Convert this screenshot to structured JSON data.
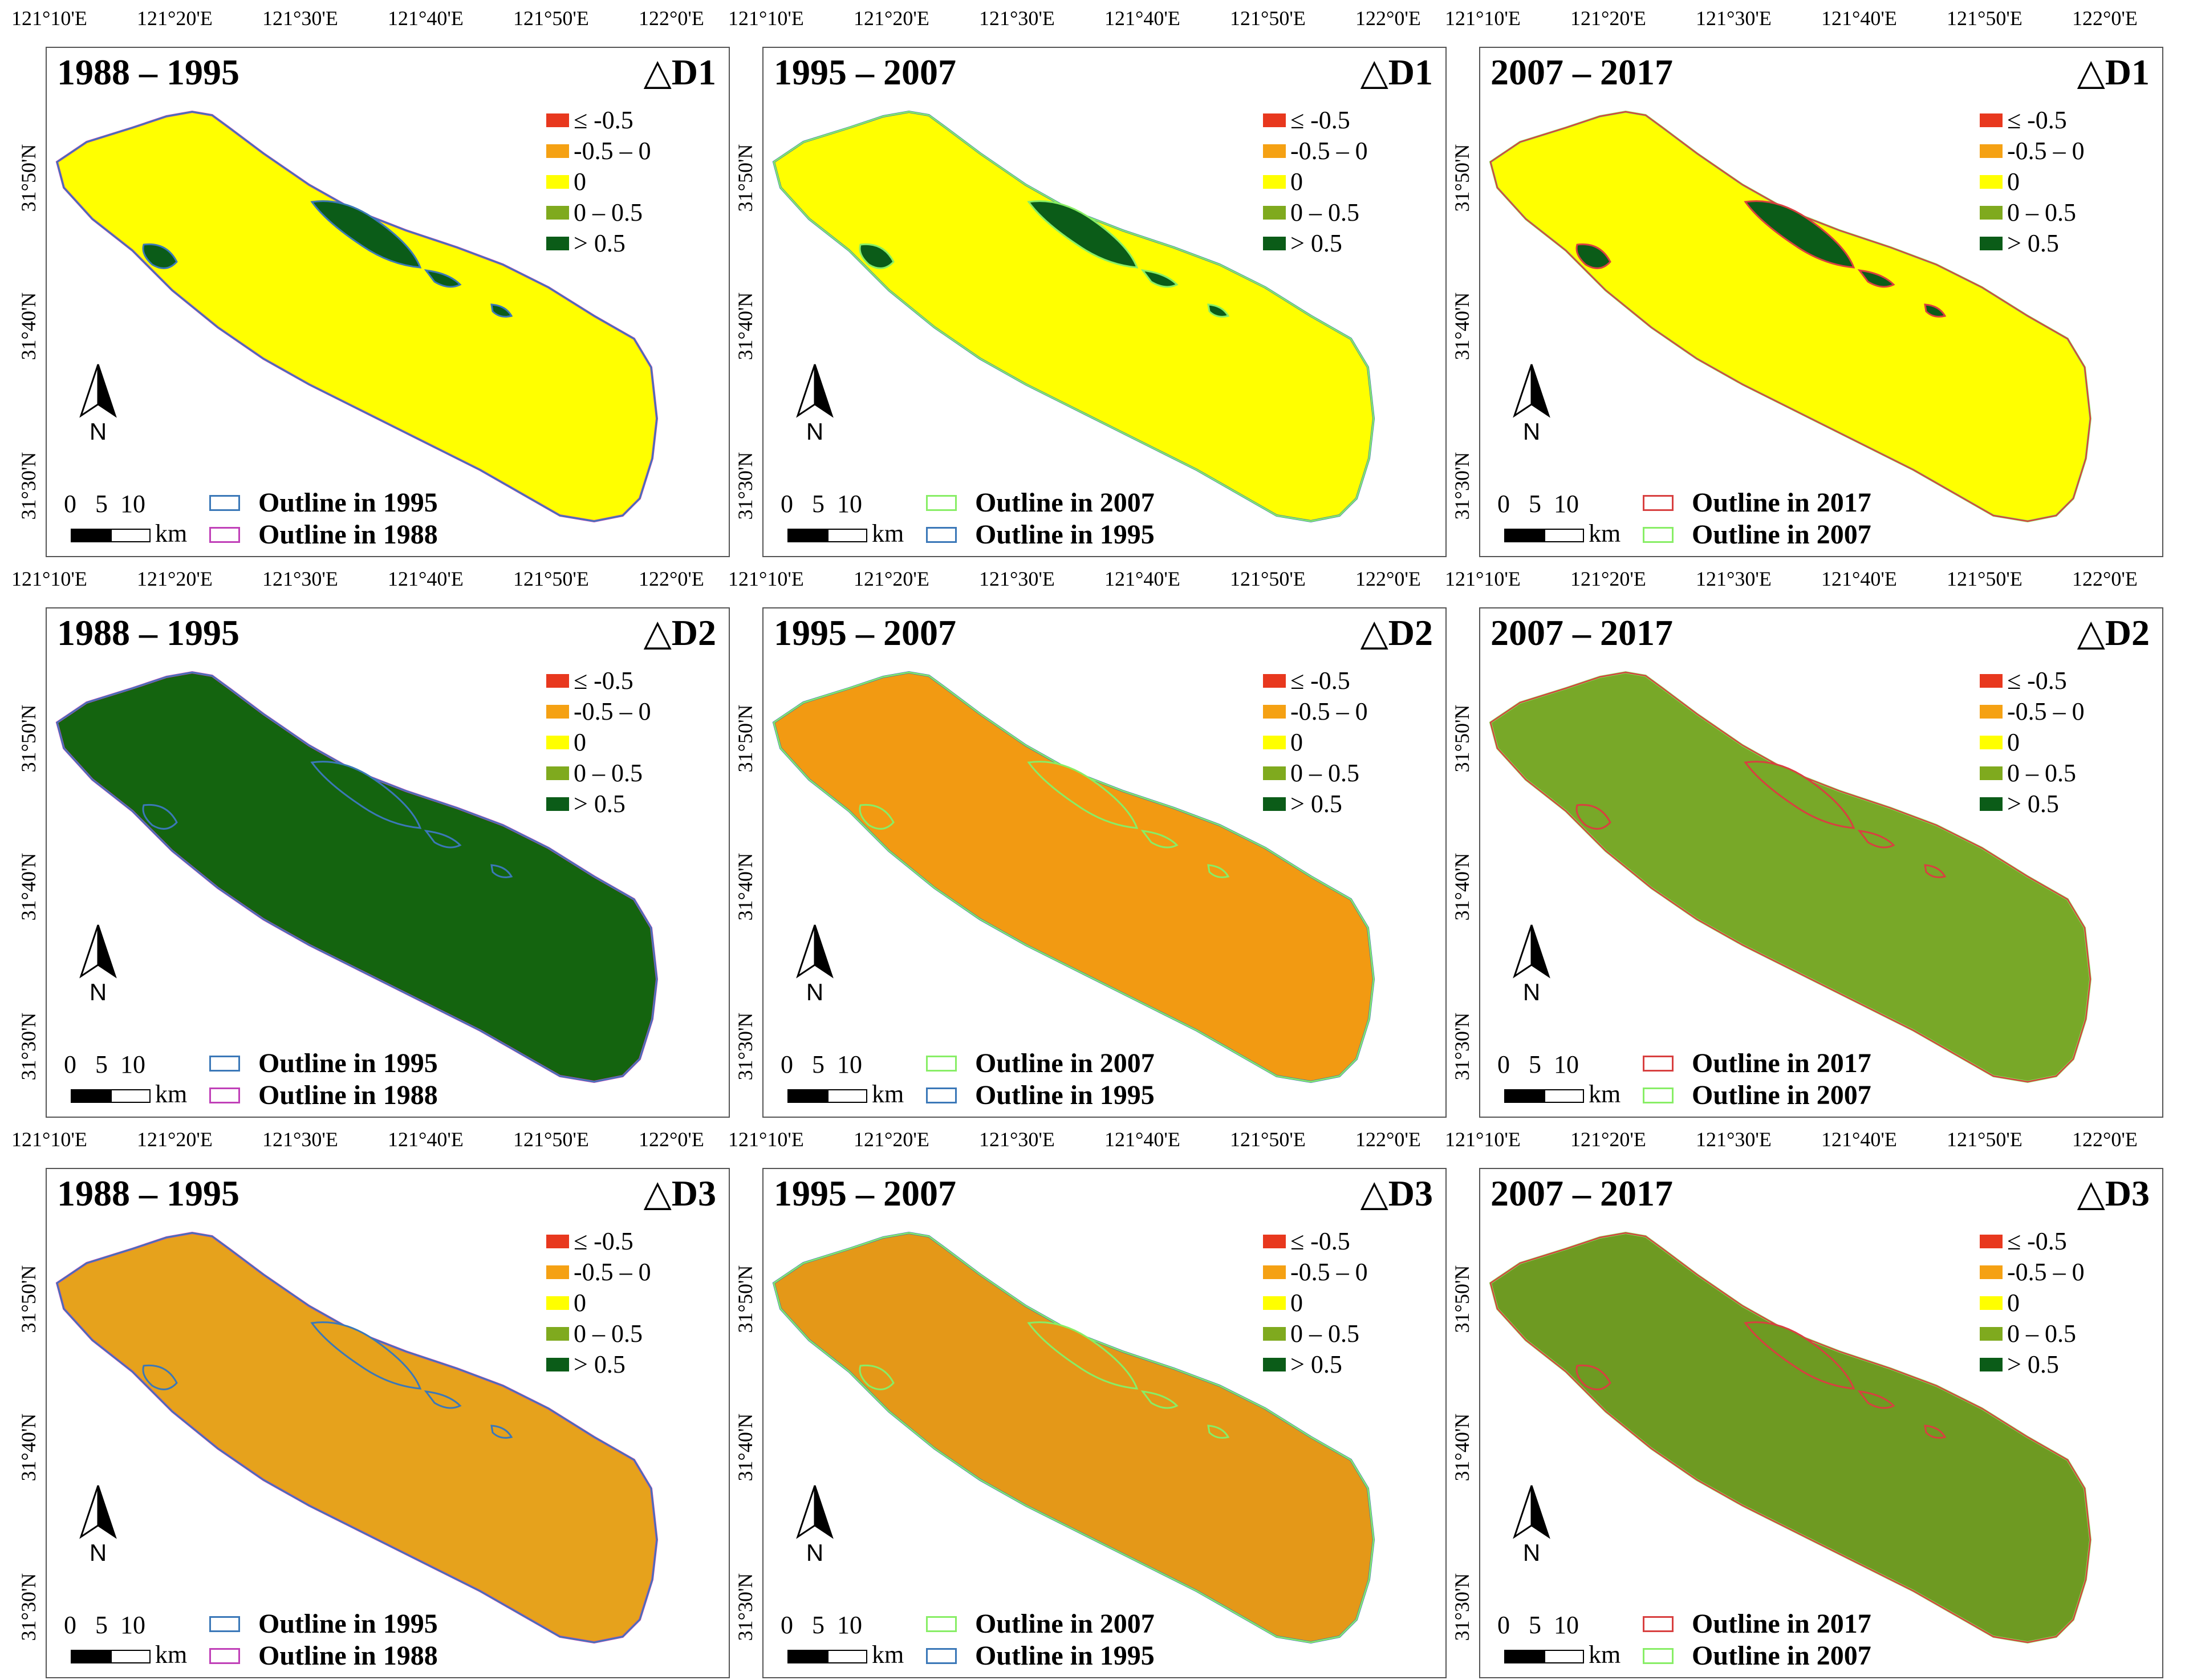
{
  "lon_labels": [
    "121°10'E",
    "121°20'E",
    "121°30'E",
    "121°40'E",
    "121°50'E",
    "122°0'E"
  ],
  "lat_labels": [
    "31°50'N",
    "31°40'N",
    "31°30'N"
  ],
  "legend_items": [
    {
      "label": "≤ -0.5",
      "color": "#e8381e"
    },
    {
      "label": "-0.5 – 0",
      "color": "#f5a113"
    },
    {
      "label": "0",
      "color": "#ffff00"
    },
    {
      "label": "0 – 0.5",
      "color": "#7faa1e"
    },
    {
      "label": "> 0.5",
      "color": "#0b5c18"
    }
  ],
  "north_label": "N",
  "scale": {
    "ticks": "0   5  10",
    "unit": "km"
  },
  "rows": [
    {
      "delta": "△D1"
    },
    {
      "delta": "△D2"
    },
    {
      "delta": "△D3"
    }
  ],
  "columns": [
    {
      "period": "1988 – 1995",
      "outlines": [
        {
          "label": "Outline in 1995",
          "color": "#3b78b8"
        },
        {
          "label": "Outline in 1988",
          "color": "#c040b8"
        }
      ]
    },
    {
      "period": "1995 – 2007",
      "outlines": [
        {
          "label": "Outline in 2007",
          "color": "#88ee66"
        },
        {
          "label": "Outline in 1995",
          "color": "#3b78b8"
        }
      ]
    },
    {
      "period": "2007 – 2017",
      "outlines": [
        {
          "label": "Outline in 2017",
          "color": "#d84040"
        },
        {
          "label": "Outline in 2007",
          "color": "#88ee66"
        }
      ]
    }
  ],
  "fills": [
    [
      "#ffff00",
      "#ffff00",
      "#ffff00"
    ],
    [
      "#14640f",
      "#f29a12",
      "#78a828"
    ],
    [
      "#e6a21c",
      "#e49818",
      "#6e9a22"
    ]
  ]
}
